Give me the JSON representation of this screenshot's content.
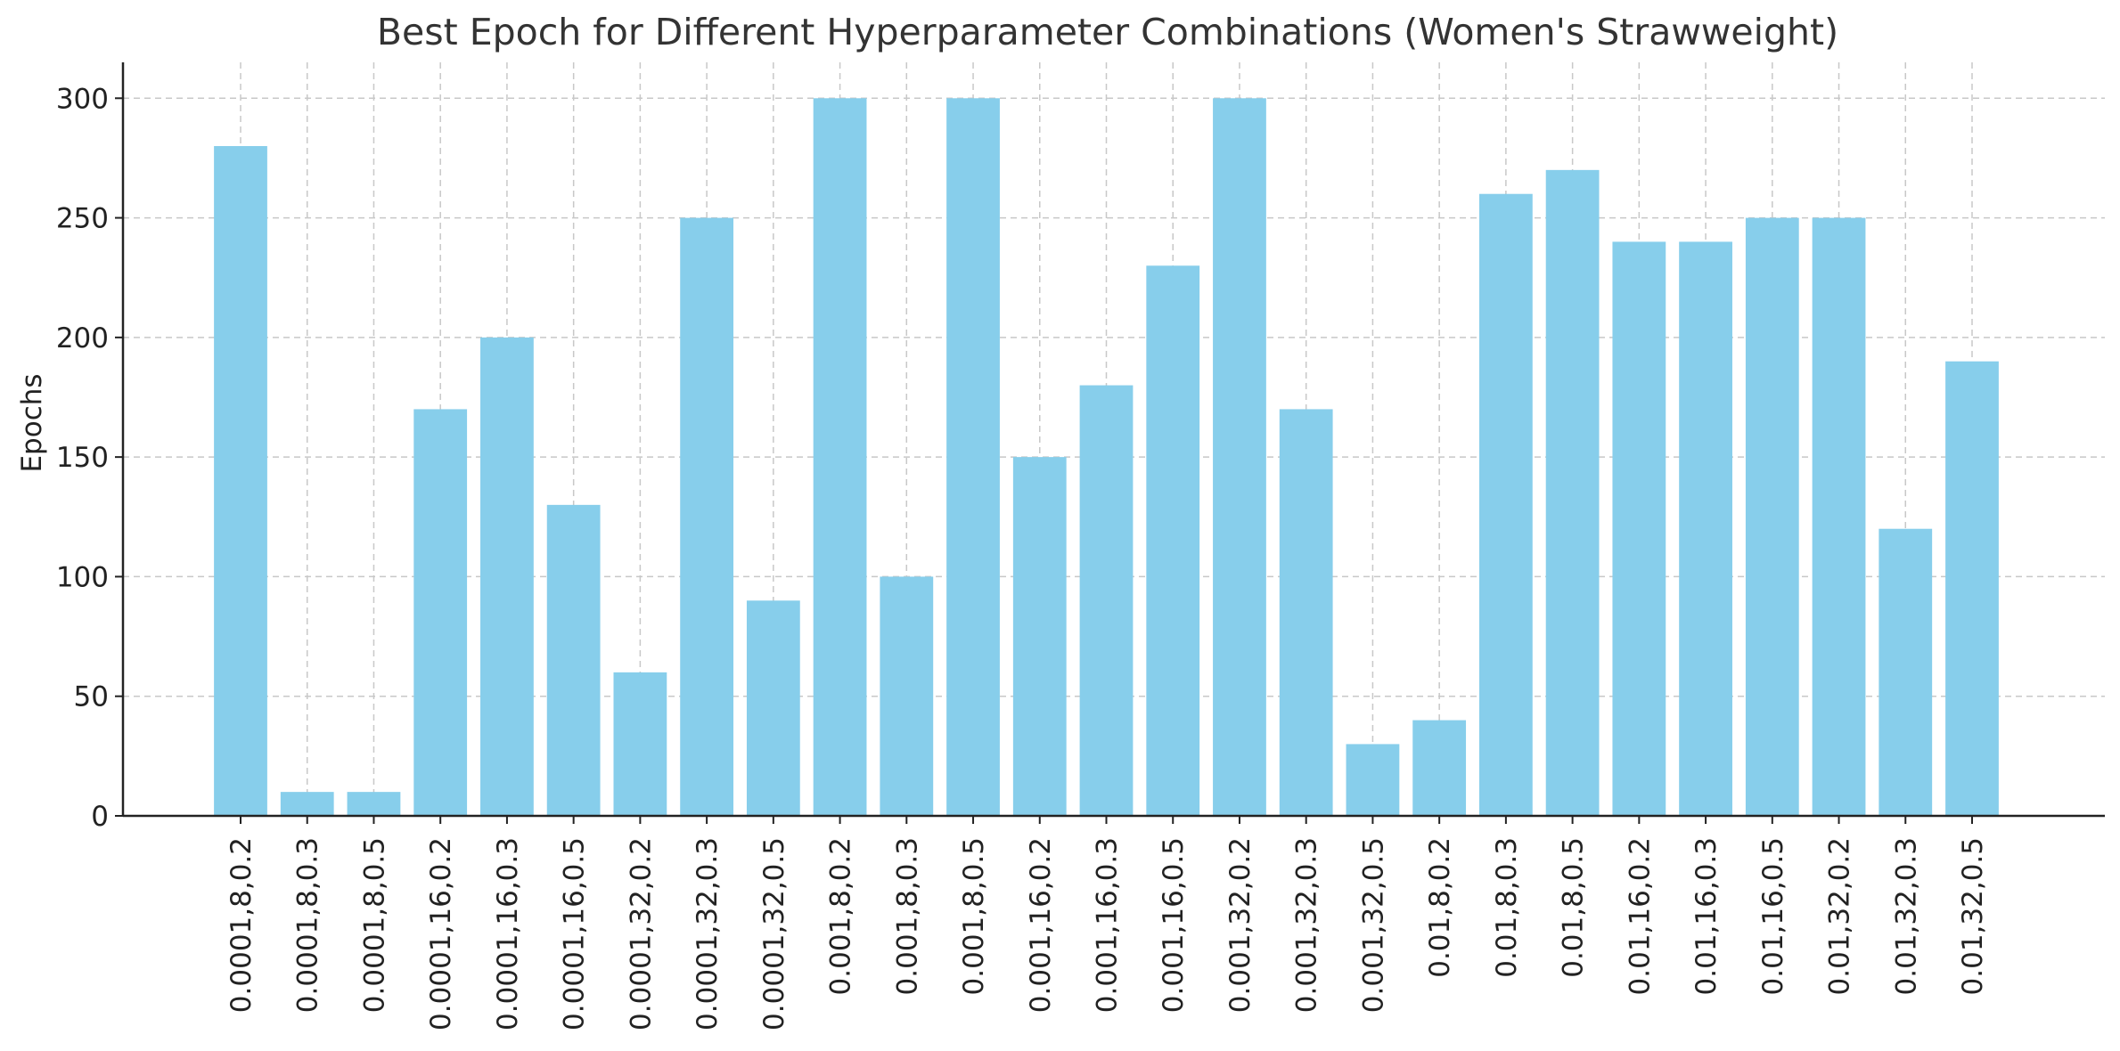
{
  "chart_data": {
    "type": "bar",
    "title": "Best Epoch for Different Hyperparameter Combinations (Women's Strawweight)",
    "xlabel": "",
    "ylabel": "Epochs",
    "ylim": [
      0,
      315
    ],
    "yticks": [
      0,
      50,
      100,
      150,
      200,
      250,
      300
    ],
    "grid": true,
    "bar_color": "#87CEEB",
    "categories": [
      "0.0001,8,0.2",
      "0.0001,8,0.3",
      "0.0001,8,0.5",
      "0.0001,16,0.2",
      "0.0001,16,0.3",
      "0.0001,16,0.5",
      "0.0001,32,0.2",
      "0.0001,32,0.3",
      "0.0001,32,0.5",
      "0.001,8,0.2",
      "0.001,8,0.3",
      "0.001,8,0.5",
      "0.001,16,0.2",
      "0.001,16,0.3",
      "0.001,16,0.5",
      "0.001,32,0.2",
      "0.001,32,0.3",
      "0.001,32,0.5",
      "0.01,8,0.2",
      "0.01,8,0.3",
      "0.01,8,0.5",
      "0.01,16,0.2",
      "0.01,16,0.3",
      "0.01,16,0.5",
      "0.01,32,0.2",
      "0.01,32,0.3",
      "0.01,32,0.5"
    ],
    "values": [
      280,
      10,
      10,
      170,
      200,
      130,
      60,
      250,
      90,
      300,
      100,
      300,
      150,
      180,
      230,
      300,
      170,
      30,
      40,
      260,
      270,
      240,
      240,
      250,
      250,
      120,
      190
    ]
  }
}
